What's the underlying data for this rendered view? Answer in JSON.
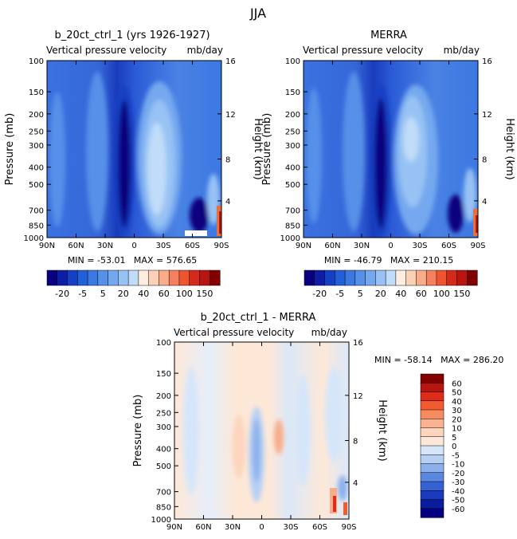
{
  "figure": {
    "title": "JJA"
  },
  "chart_data": [
    {
      "type": "heatmap",
      "id": "p1",
      "title": "b_20ct_ctrl_1 (yrs 1926-1927)",
      "subtitle_left": "Vertical pressure velocity",
      "subtitle_right": "mb/day",
      "xlabel": "",
      "ylabel": "Pressure (mb)",
      "ylabel_right": "Height (km)",
      "x_ticks": [
        "90N",
        "60N",
        "30N",
        "0",
        "30S",
        "60S",
        "90S"
      ],
      "y_ticks": [
        "100",
        "150",
        "200",
        "250",
        "300",
        "400",
        "500",
        "700",
        "850",
        "1000"
      ],
      "y_ticks_right": [
        "16",
        "12",
        "8",
        "4"
      ],
      "stats": "MIN = -53.01   MAX = 576.65",
      "colorbar_labels": [
        "-20",
        "-5",
        "5",
        "20",
        "40",
        "60",
        "100",
        "150"
      ],
      "fields": [
        {
          "feature": "strong subsidence column",
          "lat": "~10N",
          "pressure": "150-1000",
          "value": "< -20"
        },
        {
          "feature": "ascending cell",
          "lat": "~20S",
          "pressure": "200-850",
          "value": "~5"
        },
        {
          "feature": "local maximum",
          "lat": "~85S",
          "pressure": "700-1000",
          "value": "~150"
        }
      ]
    },
    {
      "type": "heatmap",
      "id": "p2",
      "title": "MERRA",
      "subtitle_left": "Vertical pressure velocity",
      "subtitle_right": "mb/day",
      "xlabel": "",
      "ylabel": "Pressure (mb)",
      "ylabel_right": "Height (km)",
      "x_ticks": [
        "90N",
        "60N",
        "30N",
        "0",
        "30S",
        "60S",
        "90S"
      ],
      "y_ticks": [
        "100",
        "150",
        "200",
        "250",
        "300",
        "400",
        "500",
        "700",
        "850",
        "1000"
      ],
      "y_ticks_right": [
        "16",
        "12",
        "8",
        "4"
      ],
      "stats": "MIN = -46.79   MAX = 210.15",
      "colorbar_labels": [
        "-20",
        "-5",
        "5",
        "20",
        "40",
        "60",
        "100",
        "150"
      ],
      "fields": [
        {
          "feature": "strong subsidence column",
          "lat": "~10N",
          "pressure": "150-1000",
          "value": "< -20"
        },
        {
          "feature": "ascending cell",
          "lat": "~20S",
          "pressure": "200-850",
          "value": "~5"
        },
        {
          "feature": "local maximum",
          "lat": "~85S",
          "pressure": "700-1000",
          "value": "~100"
        }
      ]
    },
    {
      "type": "heatmap",
      "id": "p3",
      "title": "b_20ct_ctrl_1 - MERRA",
      "subtitle_left": "Vertical pressure velocity",
      "subtitle_right": "mb/day",
      "xlabel": "",
      "ylabel": "Pressure (mb)",
      "ylabel_right": "Height (km)",
      "x_ticks": [
        "90N",
        "60N",
        "30N",
        "0",
        "30S",
        "60S",
        "90S"
      ],
      "y_ticks": [
        "100",
        "150",
        "200",
        "250",
        "300",
        "400",
        "500",
        "700",
        "850",
        "1000"
      ],
      "y_ticks_right": [
        "16",
        "12",
        "8",
        "4"
      ],
      "stats": "MIN = -58.14   MAX = 286.20",
      "colorbar_labels": [
        "60",
        "50",
        "40",
        "30",
        "20",
        "10",
        "5",
        "0",
        "-5",
        "-10",
        "-20",
        "-30",
        "-40",
        "-50",
        "-60"
      ],
      "fields": [
        {
          "feature": "negative difference",
          "lat": "~10N",
          "pressure": "200-700",
          "value": "~-20"
        },
        {
          "feature": "positive difference",
          "lat": "~20S",
          "pressure": "250-500",
          "value": "~10"
        },
        {
          "feature": "positive difference",
          "lat": "~85S",
          "pressure": "700-1000",
          "value": "~40"
        }
      ]
    }
  ],
  "colors": {
    "seq_cb": [
      "#08007e",
      "#0d1ea6",
      "#1640c4",
      "#2360d8",
      "#3b78e2",
      "#5690e8",
      "#74a8ee",
      "#98c2f4",
      "#c0dcf8",
      "#ffeee0",
      "#fcd0b4",
      "#f8ac88",
      "#f58060",
      "#ee5430",
      "#d42a1a",
      "#b81410",
      "#830000"
    ],
    "diff_cb": [
      "#830000",
      "#b81410",
      "#de2c1a",
      "#f25a30",
      "#f88a60",
      "#fbb292",
      "#fdd4bc",
      "#fde8d8",
      "#d6e6fa",
      "#b6d0f4",
      "#8cb0ec",
      "#5a88e0",
      "#3462d2",
      "#1a3cbc",
      "#0c1ca0",
      "#050080"
    ]
  }
}
